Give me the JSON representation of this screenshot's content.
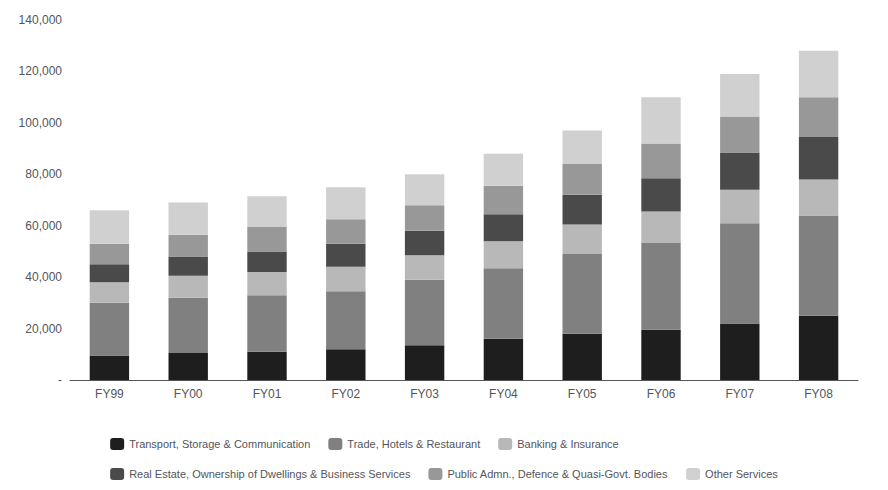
{
  "chart_data": {
    "type": "bar",
    "stacked": true,
    "grid": false,
    "legend": "bottom",
    "categories": [
      "FY99",
      "FY00",
      "FY01",
      "FY02",
      "FY03",
      "FY04",
      "FY05",
      "FY06",
      "FY07",
      "FY08"
    ],
    "series": [
      {
        "name": "Transport, Storage & Communication",
        "color": "#1e1e1e",
        "values": [
          9500,
          10500,
          11000,
          12000,
          13500,
          16000,
          18000,
          19500,
          22000,
          25000
        ]
      },
      {
        "name": "Trade, Hotels & Restaurant",
        "color": "#808080",
        "values": [
          20500,
          21500,
          22000,
          22500,
          25500,
          27500,
          31000,
          34000,
          39000,
          39000
        ]
      },
      {
        "name": "Banking & Insurance",
        "color": "#b8b8b8",
        "values": [
          8000,
          8500,
          9000,
          9500,
          9500,
          10500,
          11500,
          12000,
          13000,
          14000
        ]
      },
      {
        "name": "Real Estate, Ownership of Dwellings & Business Services",
        "color": "#4a4a4a",
        "values": [
          7000,
          7500,
          8000,
          9000,
          9500,
          10500,
          11500,
          13000,
          14500,
          16500
        ]
      },
      {
        "name": "Public Admn., Defence & Quasi-Govt. Bodies",
        "color": "#989898",
        "values": [
          8000,
          8500,
          9500,
          9500,
          10000,
          11000,
          12000,
          13500,
          14000,
          15500
        ]
      },
      {
        "name": "Other Services",
        "color": "#d0d0d0",
        "values": [
          13000,
          12500,
          12000,
          12500,
          12000,
          12500,
          13000,
          18000,
          16500,
          18000
        ]
      }
    ],
    "ylim": [
      0,
      140000
    ],
    "yticks": [
      {
        "value": 0,
        "label": "-"
      },
      {
        "value": 20000,
        "label": "20,000"
      },
      {
        "value": 40000,
        "label": "40,000"
      },
      {
        "value": 60000,
        "label": "60,000"
      },
      {
        "value": 80000,
        "label": "80,000"
      },
      {
        "value": 100000,
        "label": "100,000"
      },
      {
        "value": 120000,
        "label": "120,000"
      },
      {
        "value": 140000,
        "label": "140,000"
      }
    ]
  }
}
